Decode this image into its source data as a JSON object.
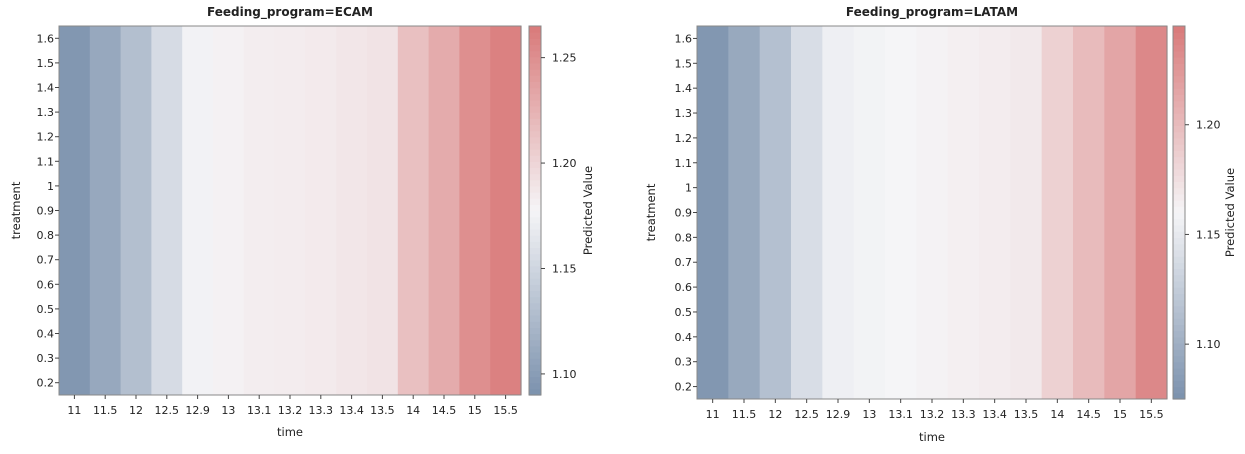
{
  "chart_data": [
    {
      "type": "heatmap",
      "title": "Feeding_program=ECAM",
      "xlabel": "time",
      "ylabel": "treatment",
      "x": [
        "11",
        "11.5",
        "12",
        "12.5",
        "12.9",
        "13",
        "13.1",
        "13.2",
        "13.3",
        "13.4",
        "13.5",
        "14",
        "14.5",
        "15",
        "15.5"
      ],
      "y_ticks": [
        "0.2",
        "0.3",
        "0.4",
        "0.5",
        "0.6",
        "0.7",
        "0.8",
        "0.9",
        "1",
        "1.1",
        "1.2",
        "1.3",
        "1.4",
        "1.5",
        "1.6"
      ],
      "ylim": [
        0.15,
        1.65
      ],
      "values": [
        1.095,
        1.11,
        1.13,
        1.155,
        1.175,
        1.18,
        1.183,
        1.184,
        1.185,
        1.188,
        1.19,
        1.215,
        1.23,
        1.25,
        1.26
      ],
      "colorbar": {
        "label": "Predicted Value",
        "ticks": [
          "1.10",
          "1.15",
          "1.20",
          "1.25"
        ],
        "tick_values": [
          1.1,
          1.15,
          1.2,
          1.25
        ],
        "range": [
          1.09,
          1.265
        ]
      },
      "colors": {
        "low": "#7b91ad",
        "mid": "#f5f5f7",
        "high": "#d97a7a"
      }
    },
    {
      "type": "heatmap",
      "title": "Feeding_program=LATAM",
      "xlabel": "time",
      "ylabel": "treatment",
      "x": [
        "11",
        "11.5",
        "12",
        "12.5",
        "12.9",
        "13",
        "13.1",
        "13.2",
        "13.3",
        "13.4",
        "13.5",
        "14",
        "14.5",
        "15",
        "15.5"
      ],
      "y_ticks": [
        "0.2",
        "0.3",
        "0.4",
        "0.5",
        "0.6",
        "0.7",
        "0.8",
        "0.9",
        "1",
        "1.1",
        "1.2",
        "1.3",
        "1.4",
        "1.5",
        "1.6"
      ],
      "ylim": [
        0.15,
        1.65
      ],
      "values": [
        1.08,
        1.095,
        1.115,
        1.14,
        1.155,
        1.158,
        1.16,
        1.162,
        1.164,
        1.166,
        1.168,
        1.185,
        1.2,
        1.215,
        1.235
      ],
      "colorbar": {
        "label": "Predicted Value",
        "ticks": [
          "1.10",
          "1.15",
          "1.20"
        ],
        "tick_values": [
          1.1,
          1.15,
          1.2
        ],
        "range": [
          1.075,
          1.245
        ]
      },
      "colors": {
        "low": "#7b91ad",
        "mid": "#f5f5f7",
        "high": "#d97a7a"
      }
    }
  ]
}
